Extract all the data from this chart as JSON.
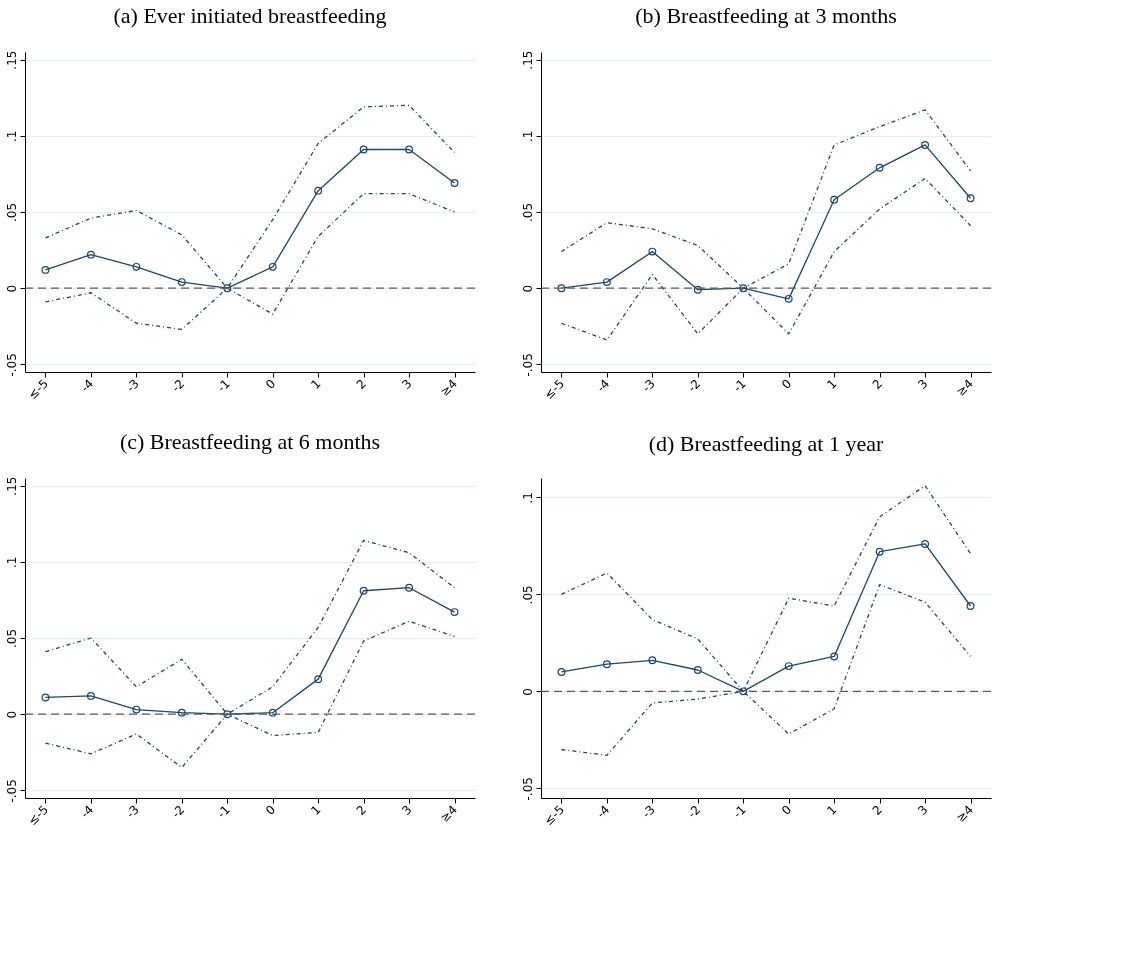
{
  "chart_data": [
    {
      "type": "line",
      "title": "(a) Ever initiated breastfeeding",
      "categories": [
        "≤-5",
        "-4",
        "-3",
        "-2",
        "-1",
        "0",
        "1",
        "2",
        "3",
        "≥4"
      ],
      "ylim": [
        -0.055,
        0.155
      ],
      "yticks": [
        {
          "value": -0.05,
          "label": "-.05"
        },
        0,
        {
          "value": 0.05,
          "label": ".05"
        },
        {
          "value": 0.1,
          "label": ".1"
        },
        {
          "value": 0.15,
          "label": ".15"
        }
      ],
      "grid": "y",
      "ref_lines": [
        {
          "axis": "y",
          "value": 0,
          "color": "#595959",
          "line_style": "dashed"
        }
      ],
      "series": [
        {
          "color": "#1a476f",
          "marker": "circle",
          "line_style": "solid",
          "values": [
            0.012,
            0.022,
            0.014,
            0.004,
            0,
            0.014,
            0.064,
            0.091,
            0.091,
            0.069
          ]
        },
        {
          "color": "#1a476f",
          "marker": "none",
          "line_style": "dotted",
          "values": [
            0.033,
            0.046,
            0.051,
            0.035,
            0,
            0.045,
            0.095,
            0.119,
            0.12,
            0.089
          ]
        },
        {
          "color": "#1a476f",
          "marker": "none",
          "line_style": "dotted",
          "values": [
            -0.009,
            -0.003,
            -0.023,
            -0.027,
            0,
            -0.017,
            0.034,
            0.062,
            0.062,
            0.05
          ]
        }
      ]
    },
    {
      "type": "line",
      "title": "(b) Breastfeeding at 3 months",
      "categories": [
        "≤-5",
        "-4",
        "-3",
        "-2",
        "-1",
        "0",
        "1",
        "2",
        "3",
        "≥4"
      ],
      "ylim": [
        -0.055,
        0.155
      ],
      "yticks": [
        {
          "value": -0.05,
          "label": "-.05"
        },
        0,
        {
          "value": 0.05,
          "label": ".05"
        },
        {
          "value": 0.1,
          "label": ".1"
        },
        {
          "value": 0.15,
          "label": ".15"
        }
      ],
      "grid": "y",
      "ref_lines": [
        {
          "axis": "y",
          "value": 0,
          "color": "#595959",
          "line_style": "dashed"
        }
      ],
      "series": [
        {
          "color": "#1a476f",
          "marker": "circle",
          "line_style": "solid",
          "values": [
            0,
            0.004,
            0.024,
            -0.001,
            0,
            -0.007,
            0.058,
            0.079,
            0.094,
            0.059
          ]
        },
        {
          "color": "#1a476f",
          "marker": "none",
          "line_style": "dotted",
          "values": [
            0.024,
            0.043,
            0.039,
            0.028,
            0,
            0.016,
            0.094,
            0.106,
            0.117,
            0.077
          ]
        },
        {
          "color": "#1a476f",
          "marker": "none",
          "line_style": "dotted",
          "values": [
            -0.023,
            -0.034,
            0.009,
            -0.03,
            0,
            -0.03,
            0.024,
            0.052,
            0.072,
            0.041
          ]
        }
      ]
    },
    {
      "type": "line",
      "title": "(c) Breastfeeding at 6 months",
      "categories": [
        "≤-5",
        "-4",
        "-3",
        "-2",
        "-1",
        "0",
        "1",
        "2",
        "3",
        "≥4"
      ],
      "ylim": [
        -0.055,
        0.155
      ],
      "yticks": [
        {
          "value": -0.05,
          "label": "-.05"
        },
        0,
        {
          "value": 0.05,
          "label": ".05"
        },
        {
          "value": 0.1,
          "label": ".1"
        },
        {
          "value": 0.15,
          "label": ".15"
        }
      ],
      "grid": "y",
      "ref_lines": [
        {
          "axis": "y",
          "value": 0,
          "color": "#595959",
          "line_style": "dashed"
        }
      ],
      "series": [
        {
          "color": "#1a476f",
          "marker": "circle",
          "line_style": "solid",
          "values": [
            0.011,
            0.012,
            0.003,
            0.001,
            0,
            0.001,
            0.023,
            0.081,
            0.083,
            0.067
          ]
        },
        {
          "color": "#1a476f",
          "marker": "none",
          "line_style": "dotted",
          "values": [
            0.041,
            0.05,
            0.018,
            0.036,
            0,
            0.018,
            0.057,
            0.114,
            0.106,
            0.083
          ]
        },
        {
          "color": "#1a476f",
          "marker": "none",
          "line_style": "dotted",
          "values": [
            -0.019,
            -0.026,
            -0.013,
            -0.035,
            0,
            -0.014,
            -0.012,
            0.048,
            0.061,
            0.051
          ]
        }
      ]
    },
    {
      "type": "line",
      "title": "(d) Breastfeeding at 1 year",
      "categories": [
        "≤-5",
        "-4",
        "-3",
        "-2",
        "-1",
        "0",
        "1",
        "2",
        "3",
        "≥4"
      ],
      "ylim": [
        -0.055,
        0.11
      ],
      "yticks": [
        {
          "value": -0.05,
          "label": "-.05"
        },
        0,
        {
          "value": 0.05,
          "label": ".05"
        },
        {
          "value": 0.1,
          "label": ".1"
        }
      ],
      "grid": "y",
      "ref_lines": [
        {
          "axis": "y",
          "value": 0,
          "color": "#595959",
          "line_style": "dashed"
        }
      ],
      "series": [
        {
          "color": "#1a476f",
          "marker": "circle",
          "line_style": "solid",
          "values": [
            0.01,
            0.014,
            0.016,
            0.011,
            0,
            0.013,
            0.018,
            0.072,
            0.076,
            0.044
          ]
        },
        {
          "color": "#1a476f",
          "marker": "none",
          "line_style": "dotted",
          "values": [
            0.05,
            0.061,
            0.037,
            0.027,
            0,
            0.048,
            0.044,
            0.09,
            0.106,
            0.071
          ]
        },
        {
          "color": "#1a476f",
          "marker": "none",
          "line_style": "dotted",
          "values": [
            -0.03,
            -0.033,
            -0.006,
            -0.004,
            0,
            -0.022,
            -0.009,
            0.055,
            0.046,
            0.018
          ]
        }
      ]
    }
  ]
}
